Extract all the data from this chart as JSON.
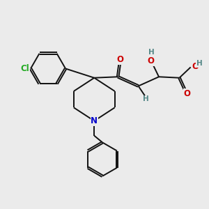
{
  "background_color": "#ebebeb",
  "figsize": [
    3.0,
    3.0
  ],
  "dpi": 100,
  "atom_colors": {
    "O": "#cc0000",
    "N": "#0000cc",
    "Cl": "#22aa22",
    "H": "#558888"
  },
  "bond_color": "#111111",
  "bond_width": 1.4,
  "font_size_atom": 8.5,
  "font_size_H": 7.5
}
